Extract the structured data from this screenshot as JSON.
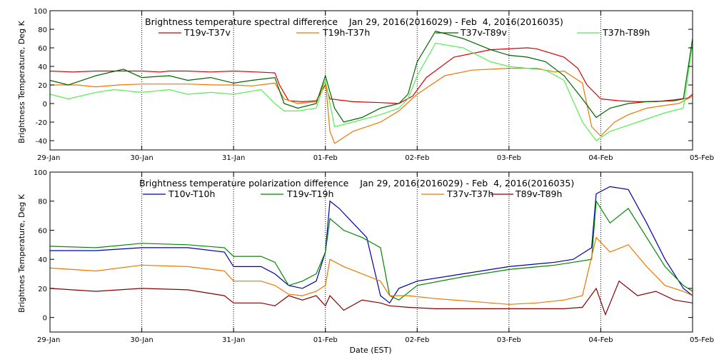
{
  "chart_data": [
    {
      "type": "line",
      "title": "Brightness temperature spectral difference    Jan 29, 2016(2016029) - Feb  4, 2016(2016035)",
      "ylabel": "Brightness Temperature, Deg K",
      "xlabel": "",
      "x_unit": "days since 29-Jan 00:00 EST",
      "xlim": [
        0,
        7
      ],
      "ylim": [
        -50,
        100
      ],
      "yticks": [
        -40,
        -20,
        0,
        20,
        40,
        60,
        80,
        100
      ],
      "xtick_labels": [
        "29-Jan",
        "30-Jan",
        "31-Jan",
        "01-Feb",
        "02-Feb",
        "03-Feb",
        "04-Feb",
        "05-Feb"
      ],
      "grid": "dotted vertical at day boundaries",
      "legend_position": "top",
      "series": [
        {
          "name": "T19v-T37v",
          "color": "#dd0000",
          "x": [
            0,
            0.25,
            0.5,
            0.75,
            1.0,
            1.2,
            1.3,
            1.5,
            1.75,
            2.0,
            2.25,
            2.45,
            2.5,
            2.6,
            2.75,
            2.9,
            3.0,
            3.05,
            3.3,
            3.6,
            3.8,
            3.95,
            4.1,
            4.4,
            4.8,
            5.2,
            5.3,
            5.6,
            5.75,
            5.85,
            6.0,
            6.2,
            6.4,
            6.6,
            6.8,
            6.95,
            7.0
          ],
          "y": [
            35,
            34,
            35,
            35,
            35,
            34,
            35,
            35,
            34,
            35,
            34,
            33,
            20,
            3,
            2,
            3,
            20,
            5,
            2,
            1,
            0,
            8,
            28,
            50,
            58,
            60,
            59,
            50,
            38,
            20,
            5,
            3,
            2,
            2,
            4,
            6,
            10
          ]
        },
        {
          "name": "T19h-T37h",
          "color": "#ee7700",
          "x": [
            0,
            0.3,
            0.5,
            0.75,
            1.0,
            1.3,
            1.5,
            1.8,
            2.0,
            2.2,
            2.45,
            2.55,
            2.7,
            2.9,
            3.0,
            3.05,
            3.1,
            3.3,
            3.6,
            3.8,
            4.0,
            4.3,
            4.6,
            5.0,
            5.3,
            5.5,
            5.6,
            5.8,
            5.9,
            6.0,
            6.15,
            6.3,
            6.5,
            6.7,
            6.85,
            7.0
          ],
          "y": [
            20,
            20,
            18,
            20,
            21,
            21,
            21,
            20,
            20,
            19,
            22,
            5,
            0,
            2,
            25,
            -30,
            -43,
            -30,
            -20,
            -8,
            10,
            30,
            36,
            38,
            38,
            34,
            35,
            22,
            -25,
            -35,
            -20,
            -12,
            -5,
            -2,
            0,
            8
          ]
        },
        {
          "name": "T37v-T89v",
          "color": "#006600",
          "x": [
            0,
            0.2,
            0.5,
            0.8,
            1.0,
            1.3,
            1.5,
            1.75,
            2.0,
            2.2,
            2.45,
            2.55,
            2.7,
            2.9,
            3.0,
            3.1,
            3.2,
            3.4,
            3.6,
            3.8,
            3.9,
            4.0,
            4.2,
            4.5,
            4.8,
            5.0,
            5.2,
            5.4,
            5.6,
            5.8,
            5.95,
            6.1,
            6.3,
            6.5,
            6.8,
            6.9,
            7.0
          ],
          "y": [
            25,
            20,
            30,
            37,
            28,
            30,
            25,
            28,
            22,
            25,
            28,
            0,
            -5,
            0,
            30,
            -5,
            -20,
            -15,
            -5,
            0,
            10,
            45,
            78,
            70,
            58,
            52,
            50,
            45,
            30,
            5,
            -15,
            -5,
            0,
            2,
            3,
            5,
            70
          ]
        },
        {
          "name": "T37h-T89h",
          "color": "#55ee55",
          "x": [
            0,
            0.2,
            0.5,
            0.7,
            1.0,
            1.3,
            1.5,
            1.75,
            2.0,
            2.3,
            2.45,
            2.55,
            2.7,
            2.9,
            3.0,
            3.1,
            3.3,
            3.6,
            3.8,
            3.9,
            4.0,
            4.2,
            4.5,
            4.8,
            5.0,
            5.2,
            5.4,
            5.6,
            5.8,
            5.95,
            6.1,
            6.4,
            6.7,
            6.9,
            7.0
          ],
          "y": [
            10,
            5,
            12,
            15,
            12,
            15,
            10,
            12,
            10,
            15,
            0,
            -8,
            -8,
            -5,
            25,
            -25,
            -20,
            -12,
            -5,
            5,
            30,
            65,
            60,
            45,
            40,
            38,
            36,
            25,
            -20,
            -40,
            -30,
            -20,
            -10,
            -5,
            65
          ]
        }
      ]
    },
    {
      "type": "line",
      "title": "Brightness temperature polarization difference    Jan 29, 2016(2016029) - Feb  4, 2016(2016035)",
      "ylabel": "Brightnes Temperature, Deg K",
      "xlabel": "Date (EST)",
      "x_unit": "days since 29-Jan 00:00 EST",
      "xlim": [
        0,
        7
      ],
      "ylim": [
        -10,
        100
      ],
      "yticks": [
        0,
        20,
        40,
        60,
        80,
        100
      ],
      "xtick_labels": [
        "29-Jan",
        "30-Jan",
        "31-Jan",
        "01-Feb",
        "02-Feb",
        "03-Feb",
        "04-Feb",
        "05-Feb"
      ],
      "grid": "dotted vertical at day boundaries",
      "legend_position": "top",
      "series": [
        {
          "name": "T10v-T10h",
          "color": "#0000aa",
          "x": [
            0,
            0.5,
            1.0,
            1.5,
            1.9,
            2.0,
            2.3,
            2.45,
            2.6,
            2.75,
            2.9,
            3.0,
            3.05,
            3.15,
            3.3,
            3.45,
            3.6,
            3.7,
            3.8,
            4.0,
            4.5,
            5.0,
            5.5,
            5.7,
            5.9,
            5.95,
            6.1,
            6.3,
            6.5,
            6.7,
            6.9,
            7.0
          ],
          "y": [
            46,
            46,
            48,
            48,
            45,
            35,
            35,
            30,
            22,
            20,
            25,
            45,
            80,
            75,
            65,
            55,
            15,
            10,
            20,
            25,
            30,
            35,
            38,
            40,
            48,
            85,
            90,
            88,
            65,
            40,
            20,
            15
          ]
        },
        {
          "name": "T19v-T19h",
          "color": "#008800",
          "x": [
            0,
            0.5,
            1.0,
            1.5,
            1.9,
            2.0,
            2.3,
            2.45,
            2.6,
            2.75,
            2.9,
            3.0,
            3.05,
            3.2,
            3.4,
            3.6,
            3.7,
            3.8,
            4.0,
            4.5,
            5.0,
            5.5,
            5.7,
            5.9,
            5.95,
            6.1,
            6.3,
            6.5,
            6.7,
            6.9,
            7.0
          ],
          "y": [
            49,
            48,
            51,
            50,
            48,
            42,
            42,
            38,
            22,
            25,
            30,
            45,
            68,
            60,
            55,
            48,
            15,
            12,
            22,
            28,
            33,
            36,
            38,
            40,
            80,
            65,
            75,
            55,
            35,
            22,
            18
          ]
        },
        {
          "name": "T37v-T37h",
          "color": "#ee7700",
          "x": [
            0,
            0.5,
            1.0,
            1.5,
            1.9,
            2.0,
            2.3,
            2.45,
            2.6,
            2.75,
            2.9,
            3.0,
            3.05,
            3.2,
            3.4,
            3.6,
            3.7,
            3.9,
            4.2,
            4.6,
            5.0,
            5.3,
            5.6,
            5.8,
            5.95,
            6.1,
            6.3,
            6.5,
            6.7,
            6.9,
            7.0
          ],
          "y": [
            34,
            32,
            36,
            35,
            32,
            25,
            25,
            22,
            16,
            15,
            18,
            22,
            40,
            35,
            30,
            25,
            15,
            15,
            13,
            11,
            9,
            10,
            12,
            15,
            55,
            45,
            50,
            35,
            22,
            18,
            15
          ]
        },
        {
          "name": "T89v-T89h",
          "color": "#880000",
          "x": [
            0,
            0.5,
            1.0,
            1.5,
            1.9,
            2.0,
            2.3,
            2.45,
            2.6,
            2.75,
            2.9,
            3.0,
            3.05,
            3.2,
            3.4,
            3.6,
            3.7,
            3.9,
            4.2,
            4.6,
            5.0,
            5.3,
            5.6,
            5.8,
            5.95,
            6.05,
            6.2,
            6.4,
            6.6,
            6.8,
            7.0
          ],
          "y": [
            20,
            18,
            20,
            19,
            15,
            10,
            10,
            8,
            15,
            12,
            15,
            8,
            15,
            5,
            12,
            10,
            8,
            7,
            6,
            6,
            6,
            6,
            6,
            7,
            20,
            2,
            25,
            15,
            18,
            12,
            10
          ]
        }
      ]
    }
  ]
}
